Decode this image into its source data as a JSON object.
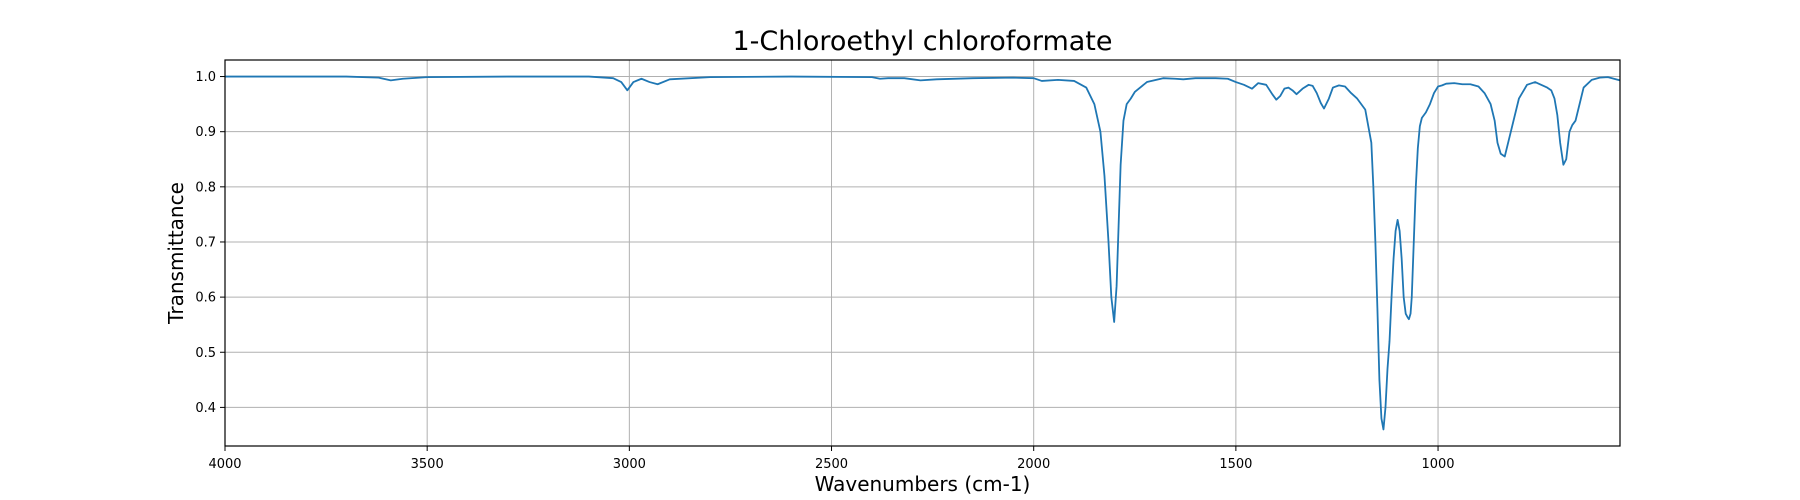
{
  "chart_data": {
    "type": "line",
    "title": "1-Chloroethyl chloroformate",
    "xlabel": "Wavenumbers (cm-1)",
    "ylabel": "Transmittance",
    "xlim": [
      4000,
      550
    ],
    "ylim": [
      0.33,
      1.03
    ],
    "x_inverted": true,
    "grid": true,
    "x_ticks": [
      4000,
      3500,
      3000,
      2500,
      2000,
      1500,
      1000
    ],
    "y_ticks": [
      0.4,
      0.5,
      0.6,
      0.7,
      0.8,
      0.9,
      1.0
    ],
    "x_tick_labels": [
      "4000",
      "3500",
      "3000",
      "2500",
      "2000",
      "1500",
      "1000"
    ],
    "y_tick_labels": [
      "0.4",
      "0.5",
      "0.6",
      "0.7",
      "0.8",
      "0.9",
      "1.0"
    ],
    "line_color": "#1f77b4",
    "series": [
      {
        "x": [
          4000,
          3700,
          3620,
          3590,
          3560,
          3500,
          3300,
          3100,
          3040,
          3020,
          3005,
          2990,
          2970,
          2950,
          2930,
          2900,
          2800,
          2600,
          2400,
          2380,
          2360,
          2320,
          2280,
          2240,
          2150,
          2050,
          2000,
          1980,
          1940,
          1900,
          1870,
          1850,
          1835,
          1825,
          1815,
          1808,
          1801,
          1795,
          1790,
          1785,
          1778,
          1770,
          1760,
          1750,
          1720,
          1680,
          1650,
          1630,
          1600,
          1550,
          1520,
          1500,
          1480,
          1460,
          1445,
          1425,
          1410,
          1400,
          1390,
          1380,
          1370,
          1360,
          1350,
          1335,
          1320,
          1310,
          1300,
          1290,
          1282,
          1270,
          1260,
          1245,
          1230,
          1215,
          1200,
          1180,
          1165,
          1160,
          1155,
          1150,
          1145,
          1140,
          1135,
          1130,
          1125,
          1120,
          1115,
          1110,
          1105,
          1100,
          1095,
          1090,
          1085,
          1080,
          1075,
          1072,
          1068,
          1065,
          1060,
          1055,
          1050,
          1045,
          1040,
          1035,
          1030,
          1020,
          1010,
          1000,
          990,
          980,
          960,
          940,
          920,
          900,
          885,
          870,
          860,
          853,
          845,
          835,
          820,
          800,
          780,
          760,
          745,
          730,
          720,
          712,
          705,
          698,
          690,
          683,
          675,
          668,
          660,
          650,
          640,
          620,
          600,
          580,
          565,
          550
        ],
        "y": [
          1.0,
          1.0,
          0.998,
          0.993,
          0.996,
          0.999,
          1.0,
          1.0,
          0.997,
          0.99,
          0.975,
          0.99,
          0.996,
          0.99,
          0.986,
          0.995,
          0.999,
          1.0,
          0.999,
          0.996,
          0.997,
          0.997,
          0.993,
          0.995,
          0.997,
          0.998,
          0.997,
          0.992,
          0.994,
          0.992,
          0.98,
          0.95,
          0.9,
          0.82,
          0.7,
          0.6,
          0.555,
          0.62,
          0.73,
          0.84,
          0.92,
          0.95,
          0.96,
          0.972,
          0.99,
          0.997,
          0.996,
          0.995,
          0.997,
          0.997,
          0.996,
          0.99,
          0.985,
          0.978,
          0.988,
          0.985,
          0.968,
          0.958,
          0.965,
          0.978,
          0.98,
          0.975,
          0.968,
          0.978,
          0.985,
          0.983,
          0.97,
          0.952,
          0.942,
          0.96,
          0.98,
          0.984,
          0.982,
          0.97,
          0.96,
          0.94,
          0.88,
          0.8,
          0.7,
          0.58,
          0.45,
          0.38,
          0.36,
          0.4,
          0.47,
          0.52,
          0.6,
          0.67,
          0.72,
          0.74,
          0.72,
          0.67,
          0.6,
          0.57,
          0.563,
          0.56,
          0.57,
          0.6,
          0.7,
          0.8,
          0.87,
          0.91,
          0.925,
          0.93,
          0.935,
          0.95,
          0.97,
          0.982,
          0.984,
          0.987,
          0.988,
          0.986,
          0.986,
          0.982,
          0.97,
          0.95,
          0.92,
          0.88,
          0.86,
          0.855,
          0.9,
          0.96,
          0.985,
          0.99,
          0.985,
          0.98,
          0.975,
          0.96,
          0.93,
          0.88,
          0.84,
          0.85,
          0.9,
          0.912,
          0.92,
          0.95,
          0.98,
          0.994,
          0.998,
          0.999,
          0.996,
          0.993
        ]
      }
    ]
  }
}
